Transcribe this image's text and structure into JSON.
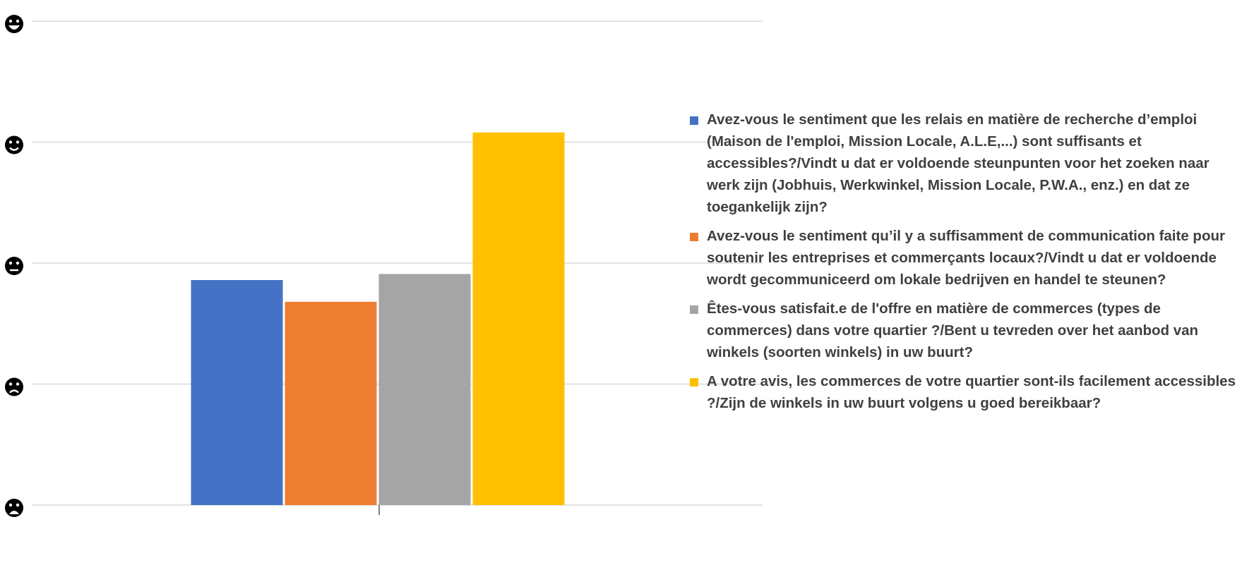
{
  "chart_data": {
    "type": "bar",
    "categories": [
      null
    ],
    "series": [
      {
        "name": "Avez-vous le sentiment que les relais en matière de recherche d’emploi (Maison de l'emploi, Mission Locale, A.L.E,...) sont suffisants et accessibles?/Vindt u dat er voldoende steunpunten voor het zoeken naar werk zijn (Jobhuis, Werkwinkel, Mission Locale, P.W.A., enz.) en dat ze toegankelijk zijn?",
        "color": "#4472c4",
        "values": [
          2.86
        ]
      },
      {
        "name": "Avez-vous le sentiment qu’il y a suffisamment de communication faite pour soutenir les entreprises et commerçants locaux?/Vindt u dat er voldoende wordt gecommuniceerd om lokale bedrijven en handel te steunen?",
        "color": "#ed7d31",
        "values": [
          2.68
        ]
      },
      {
        "name": "Êtes-vous satisfait.e de l'offre en matière de commerces (types de commerces) dans votre quartier ?/Bent u tevreden over het aanbod van winkels (soorten winkels) in uw buurt?",
        "color": "#a5a5a5",
        "values": [
          2.91
        ]
      },
      {
        "name": "A votre avis, les commerces de votre quartier sont-ils facilement accessibles ?/Zijn de winkels in uw buurt volgens u goed bereikbaar?",
        "color": "#ffc000",
        "values": [
          4.08
        ]
      }
    ],
    "ylim": [
      1,
      5
    ],
    "yticks": [
      1,
      2,
      3,
      4,
      5
    ],
    "grid": true,
    "legend": "right"
  }
}
